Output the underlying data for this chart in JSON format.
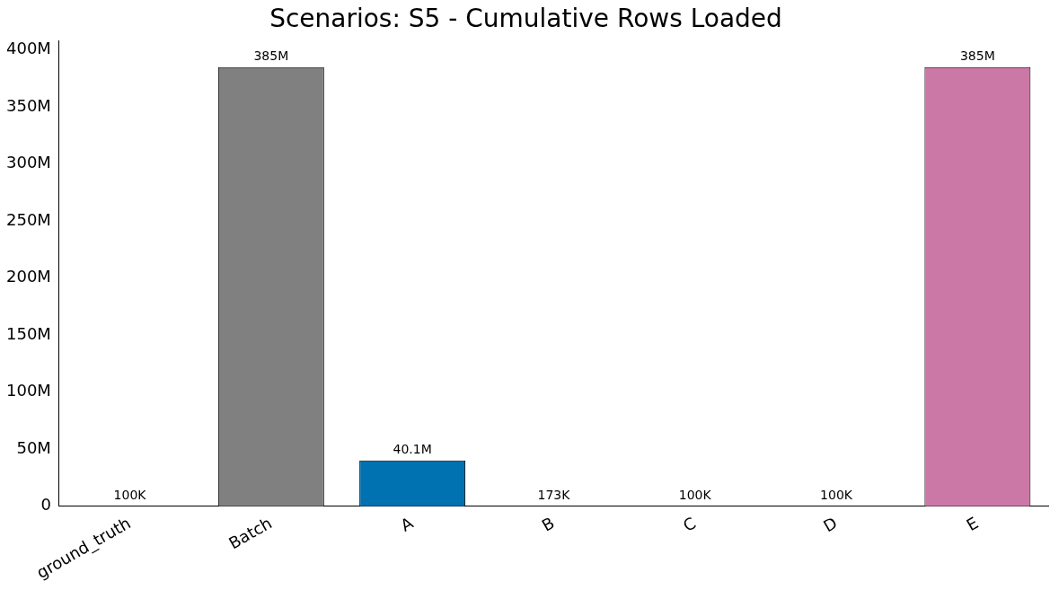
{
  "chart_data": {
    "type": "bar",
    "title": "Scenarios: S5 - Cumulative Rows Loaded",
    "categories": [
      "ground_truth",
      "Batch",
      "A",
      "B",
      "C",
      "D",
      "E"
    ],
    "values": [
      100000,
      385000000,
      40100000,
      173000,
      100000,
      100000,
      385000000
    ],
    "colors": [
      "#000000",
      "#808080",
      "#0072b2",
      "#009e73",
      "#d55e00",
      "#e69f00",
      "#cc78a6"
    ],
    "value_labels": [
      "100K",
      "385M",
      "40.1M",
      "173K",
      "100K",
      "100K",
      "385M"
    ],
    "ylim": [
      0,
      408000000
    ],
    "yticks": [
      {
        "value": 0,
        "label": "0"
      },
      {
        "value": 50000000,
        "label": "50M"
      },
      {
        "value": 100000000,
        "label": "100M"
      },
      {
        "value": 150000000,
        "label": "150M"
      },
      {
        "value": 200000000,
        "label": "200M"
      },
      {
        "value": 250000000,
        "label": "250M"
      },
      {
        "value": 300000000,
        "label": "300M"
      },
      {
        "value": 350000000,
        "label": "350M"
      },
      {
        "value": 400000000,
        "label": "400M"
      }
    ],
    "grid": false,
    "legend": false
  }
}
